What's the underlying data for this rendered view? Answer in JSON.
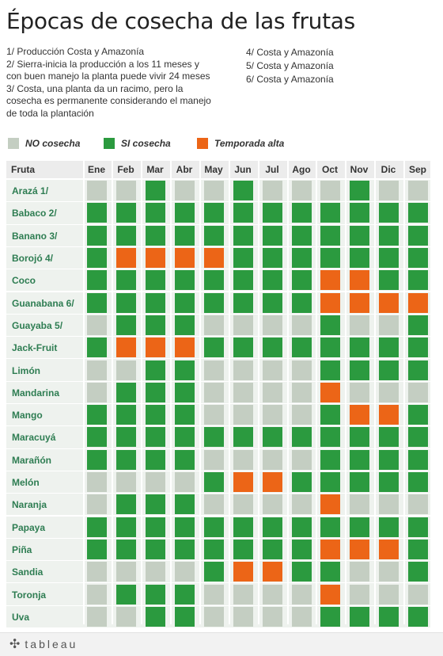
{
  "title": "Épocas de cosecha de las frutas",
  "notes_left": [
    "1/ Producción Costa y Amazonía",
    "2/ Sierra-inicia la producción a los 11 meses y con buen manejo la planta puede vivir 24 meses",
    "3/ Costa, una planta da un racimo, pero la cosecha es permanente considerando el manejo de toda la plantación"
  ],
  "notes_right": [
    "4/ Costa y Amazonía",
    "5/ Costa y Amazonía",
    "6/ Costa y Amazonía"
  ],
  "legend": [
    {
      "label": "NO cosecha",
      "color": "#c4cec2",
      "code": "N"
    },
    {
      "label": "SI cosecha",
      "color": "#2b9a3f",
      "code": "S"
    },
    {
      "label": "Temporada alta",
      "color": "#ec6517",
      "code": "T"
    }
  ],
  "header_label": "Fruta",
  "footer_logo": "tableau",
  "chart_data": {
    "type": "heatmap",
    "title": "Épocas de cosecha de las frutas",
    "columns": [
      "Ene",
      "Feb",
      "Mar",
      "Abr",
      "May",
      "Jun",
      "Jul",
      "Ago",
      "Oct",
      "Nov",
      "Dic",
      "Sep"
    ],
    "categories": {
      "N": "NO cosecha",
      "S": "SI cosecha",
      "T": "Temporada alta"
    },
    "rows": [
      {
        "label": "Arazá 1/",
        "values": [
          "N",
          "N",
          "S",
          "N",
          "N",
          "S",
          "N",
          "N",
          "N",
          "S",
          "N",
          "N"
        ]
      },
      {
        "label": "Babaco 2/",
        "values": [
          "S",
          "S",
          "S",
          "S",
          "S",
          "S",
          "S",
          "S",
          "S",
          "S",
          "S",
          "S"
        ]
      },
      {
        "label": "Banano 3/",
        "values": [
          "S",
          "S",
          "S",
          "S",
          "S",
          "S",
          "S",
          "S",
          "S",
          "S",
          "S",
          "S"
        ]
      },
      {
        "label": "Borojó 4/",
        "values": [
          "S",
          "T",
          "T",
          "T",
          "T",
          "S",
          "S",
          "S",
          "S",
          "S",
          "S",
          "S"
        ]
      },
      {
        "label": "Coco",
        "values": [
          "S",
          "S",
          "S",
          "S",
          "S",
          "S",
          "S",
          "S",
          "T",
          "T",
          "S",
          "S"
        ]
      },
      {
        "label": "Guanabana 6/",
        "values": [
          "S",
          "S",
          "S",
          "S",
          "S",
          "S",
          "S",
          "S",
          "T",
          "T",
          "T",
          "T"
        ]
      },
      {
        "label": "Guayaba 5/",
        "values": [
          "N",
          "S",
          "S",
          "S",
          "N",
          "N",
          "N",
          "N",
          "S",
          "N",
          "N",
          "S"
        ]
      },
      {
        "label": "Jack-Fruit",
        "values": [
          "S",
          "T",
          "T",
          "T",
          "S",
          "S",
          "S",
          "S",
          "S",
          "S",
          "S",
          "S"
        ]
      },
      {
        "label": "Limón",
        "values": [
          "N",
          "N",
          "S",
          "S",
          "N",
          "N",
          "N",
          "N",
          "S",
          "S",
          "S",
          "S"
        ]
      },
      {
        "label": "Mandarina",
        "values": [
          "N",
          "S",
          "S",
          "S",
          "N",
          "N",
          "N",
          "N",
          "T",
          "N",
          "N",
          "N"
        ]
      },
      {
        "label": "Mango",
        "values": [
          "S",
          "S",
          "S",
          "S",
          "N",
          "N",
          "N",
          "N",
          "S",
          "T",
          "T",
          "S"
        ]
      },
      {
        "label": "Maracuyá",
        "values": [
          "S",
          "S",
          "S",
          "S",
          "S",
          "S",
          "S",
          "S",
          "S",
          "S",
          "S",
          "S"
        ]
      },
      {
        "label": "Marañón",
        "values": [
          "S",
          "S",
          "S",
          "S",
          "N",
          "N",
          "N",
          "N",
          "S",
          "S",
          "S",
          "S"
        ]
      },
      {
        "label": "Melón",
        "values": [
          "N",
          "N",
          "N",
          "N",
          "S",
          "T",
          "T",
          "S",
          "S",
          "S",
          "S",
          "S"
        ]
      },
      {
        "label": "Naranja",
        "values": [
          "N",
          "S",
          "S",
          "S",
          "N",
          "N",
          "N",
          "N",
          "T",
          "N",
          "N",
          "N"
        ]
      },
      {
        "label": "Papaya",
        "values": [
          "S",
          "S",
          "S",
          "S",
          "S",
          "S",
          "S",
          "S",
          "S",
          "S",
          "S",
          "S"
        ]
      },
      {
        "label": "Piña",
        "values": [
          "S",
          "S",
          "S",
          "S",
          "S",
          "S",
          "S",
          "S",
          "T",
          "T",
          "T",
          "S"
        ]
      },
      {
        "label": "Sandia",
        "values": [
          "N",
          "N",
          "N",
          "N",
          "S",
          "T",
          "T",
          "S",
          "S",
          "N",
          "N",
          "S"
        ]
      },
      {
        "label": "Toronja",
        "values": [
          "N",
          "S",
          "S",
          "S",
          "N",
          "N",
          "N",
          "N",
          "T",
          "N",
          "N",
          "N"
        ]
      },
      {
        "label": "Uva",
        "values": [
          "N",
          "N",
          "S",
          "S",
          "N",
          "N",
          "N",
          "N",
          "S",
          "S",
          "S",
          "S"
        ]
      }
    ]
  }
}
